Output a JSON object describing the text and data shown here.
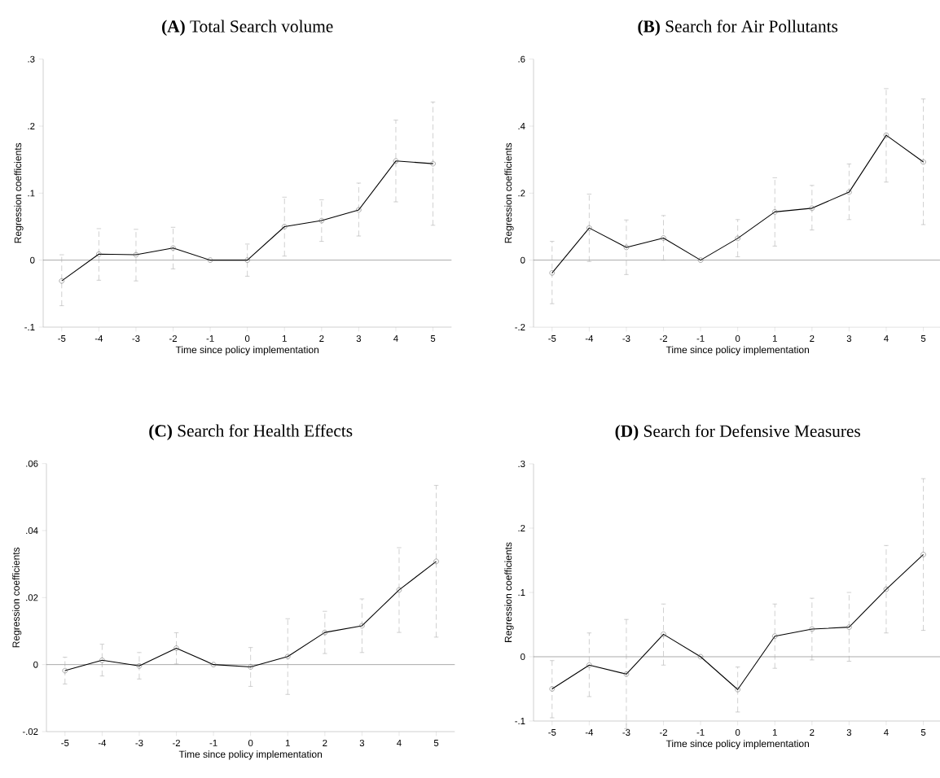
{
  "chart_data": [
    {
      "type": "line",
      "title": "**(A)** Total Search volume",
      "xlabel": "Time since policy implementation",
      "ylabel": "Regression coefficients",
      "x": [
        -5,
        -4,
        -3,
        -2,
        -1,
        0,
        1,
        2,
        3,
        4,
        5
      ],
      "xlim": [
        -5.5,
        5.5
      ],
      "xticks": [
        -5,
        -4,
        -3,
        -2,
        -1,
        0,
        1,
        2,
        3,
        4,
        5
      ],
      "ylim": [
        -0.1,
        0.3
      ],
      "yticks": [
        {
          "value": -0.1,
          "label": "-.1"
        },
        0,
        {
          "value": 0.1,
          "label": ".1"
        },
        {
          "value": 0.2,
          "label": ".2"
        },
        {
          "value": 0.3,
          "label": ".3"
        }
      ],
      "marker": "circle",
      "line_style": "solid",
      "series": [
        {
          "color": "#000000",
          "values": [
            -0.031,
            0.009,
            0.008,
            0.018,
            0,
            0,
            0.05,
            0.059,
            0.075,
            0.148,
            0.144
          ],
          "errors": [
            [
              -0.068,
              0.008
            ],
            [
              -0.03,
              0.047
            ],
            [
              -0.031,
              0.046
            ],
            [
              -0.013,
              0.049
            ],
            null,
            [
              -0.024,
              0.024
            ],
            [
              0.006,
              0.094
            ],
            [
              0.028,
              0.09
            ],
            [
              0.036,
              0.115
            ],
            [
              0.087,
              0.209
            ],
            [
              0.052,
              0.236
            ]
          ]
        }
      ],
      "ref_lines": [
        {
          "axis": "y",
          "value": 0,
          "color": "#606060"
        }
      ]
    },
    {
      "type": "line",
      "title": "**(B)** Search for Air Pollutants",
      "xlabel": "Time since policy implementation",
      "ylabel": "Regression coefficients",
      "x": [
        -5,
        -4,
        -3,
        -2,
        -1,
        0,
        1,
        2,
        3,
        4,
        5
      ],
      "xlim": [
        -5.5,
        5.5
      ],
      "xticks": [
        -5,
        -4,
        -3,
        -2,
        -1,
        0,
        1,
        2,
        3,
        4,
        5
      ],
      "ylim": [
        -0.2,
        0.6
      ],
      "yticks": [
        {
          "value": -0.2,
          "label": "-.2"
        },
        0,
        {
          "value": 0.2,
          "label": ".2"
        },
        {
          "value": 0.4,
          "label": ".4"
        },
        {
          "value": 0.6,
          "label": ".6"
        }
      ],
      "marker": "circle",
      "line_style": "solid",
      "series": [
        {
          "color": "#000000",
          "values": [
            -0.038,
            0.096,
            0.038,
            0.066,
            0,
            0.065,
            0.144,
            0.155,
            0.203,
            0.373,
            0.293
          ],
          "errors": [
            [
              -0.13,
              0.056
            ],
            [
              -0.004,
              0.197
            ],
            [
              -0.043,
              0.12
            ],
            [
              0.0,
              0.133
            ],
            null,
            [
              0.01,
              0.121
            ],
            [
              0.042,
              0.246
            ],
            [
              0.09,
              0.223
            ],
            [
              0.121,
              0.287
            ],
            [
              0.233,
              0.512
            ],
            [
              0.106,
              0.481
            ]
          ]
        }
      ],
      "ref_lines": [
        {
          "axis": "y",
          "value": 0,
          "color": "#606060"
        }
      ]
    },
    {
      "type": "line",
      "title": "**(C)** Search for Health Effects",
      "xlabel": "Time since policy implementation",
      "ylabel": "Regression coefficients",
      "x": [
        -5,
        -4,
        -3,
        -2,
        -1,
        0,
        1,
        2,
        3,
        4,
        5
      ],
      "xlim": [
        -5.5,
        5.5
      ],
      "xticks": [
        -5,
        -4,
        -3,
        -2,
        -1,
        0,
        1,
        2,
        3,
        4,
        5
      ],
      "ylim": [
        -0.02,
        0.06
      ],
      "yticks": [
        {
          "value": -0.02,
          "label": "-.02"
        },
        0,
        {
          "value": 0.02,
          "label": ".02"
        },
        {
          "value": 0.04,
          "label": ".04"
        },
        {
          "value": 0.06,
          "label": ".06"
        }
      ],
      "marker": "circle",
      "line_style": "solid",
      "series": [
        {
          "color": "#000000",
          "values": [
            -0.0018,
            0.0013,
            -0.0004,
            0.0049,
            0,
            -0.0007,
            0.0024,
            0.0096,
            0.0116,
            0.0223,
            0.0308
          ],
          "errors": [
            [
              -0.0058,
              0.0022
            ],
            [
              -0.0034,
              0.0061
            ],
            [
              -0.0043,
              0.0036
            ],
            [
              0.0002,
              0.0095
            ],
            null,
            [
              -0.0065,
              0.0051
            ],
            [
              -0.0089,
              0.0137
            ],
            [
              0.0033,
              0.0159
            ],
            [
              0.0036,
              0.0196
            ],
            [
              0.0096,
              0.0349
            ],
            [
              0.0082,
              0.0535
            ]
          ]
        }
      ],
      "ref_lines": [
        {
          "axis": "y",
          "value": 0,
          "color": "#606060"
        }
      ]
    },
    {
      "type": "line",
      "title": "**(D)** Search for Defensive Measures",
      "xlabel": "Time since policy implementation",
      "ylabel": "Regression coefficients",
      "x": [
        -5,
        -4,
        -3,
        -2,
        -1,
        0,
        1,
        2,
        3,
        4,
        5
      ],
      "xlim": [
        -5.5,
        5.5
      ],
      "xticks": [
        -5,
        -4,
        -3,
        -2,
        -1,
        0,
        1,
        2,
        3,
        4,
        5
      ],
      "ylim": [
        -0.1,
        0.3
      ],
      "yticks": [
        {
          "value": -0.1,
          "label": "-.1"
        },
        0,
        {
          "value": 0.1,
          "label": ".1"
        },
        {
          "value": 0.2,
          "label": ".2"
        },
        {
          "value": 0.3,
          "label": ".3"
        }
      ],
      "marker": "circle",
      "line_style": "solid",
      "series": [
        {
          "color": "#000000",
          "values": [
            -0.05,
            -0.013,
            -0.027,
            0.035,
            0,
            -0.051,
            0.032,
            0.043,
            0.046,
            0.105,
            0.159
          ],
          "errors": [
            [
              -0.095,
              -0.006
            ],
            [
              -0.062,
              0.037
            ],
            [
              -0.112,
              0.058
            ],
            [
              -0.013,
              0.082
            ],
            null,
            [
              -0.086,
              -0.016
            ],
            [
              -0.018,
              0.082
            ],
            [
              -0.005,
              0.091
            ],
            [
              -0.007,
              0.1
            ],
            [
              0.037,
              0.173
            ],
            [
              0.041,
              0.277
            ]
          ]
        }
      ],
      "ref_lines": [
        {
          "axis": "y",
          "value": 0,
          "color": "#606060"
        }
      ]
    }
  ]
}
